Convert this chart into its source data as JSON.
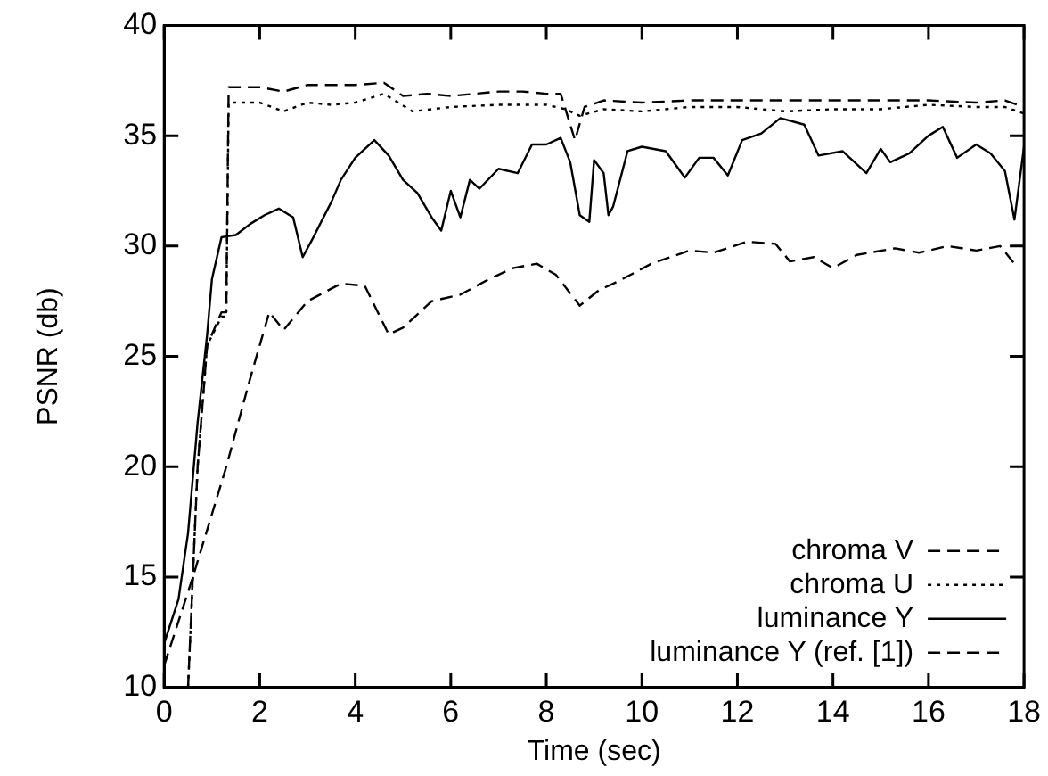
{
  "chart_data": {
    "type": "line",
    "xlabel": "Time (sec)",
    "ylabel": "PSNR (db)",
    "xlim": [
      0,
      18
    ],
    "ylim": [
      10,
      40
    ],
    "xticks": [
      0,
      2,
      4,
      6,
      8,
      10,
      12,
      14,
      16,
      18
    ],
    "yticks": [
      10,
      15,
      20,
      25,
      30,
      35,
      40
    ],
    "grid": false,
    "legend": "bottom right",
    "marker": "none",
    "series": [
      {
        "name": "chroma V",
        "color": "#000000",
        "line_style": "dashed",
        "x": [
          0.5,
          0.7,
          0.9,
          1.2,
          1.3,
          1.35,
          2.0,
          2.5,
          3.0,
          3.5,
          4.0,
          4.6,
          5.0,
          5.5,
          6.0,
          6.5,
          7.0,
          7.5,
          8.0,
          8.3,
          8.6,
          8.8,
          9.2,
          10,
          11,
          12,
          13,
          14,
          15,
          16,
          17,
          17.6,
          18
        ],
        "values": [
          10,
          20,
          25.5,
          27,
          27,
          37.2,
          37.2,
          37.0,
          37.3,
          37.3,
          37.3,
          37.4,
          36.8,
          36.9,
          36.8,
          36.9,
          37.0,
          37.0,
          36.9,
          36.9,
          34.8,
          36.3,
          36.6,
          36.5,
          36.6,
          36.6,
          36.6,
          36.6,
          36.6,
          36.6,
          36.5,
          36.6,
          36.3
        ]
      },
      {
        "name": "chroma U",
        "color": "#000000",
        "line_style": "dotted",
        "x": [
          0.5,
          0.7,
          0.9,
          1.2,
          1.3,
          1.35,
          2.0,
          2.5,
          3.0,
          3.5,
          4.0,
          4.6,
          5.2,
          6.0,
          7.0,
          8.0,
          8.4,
          8.7,
          9.2,
          10,
          11,
          12,
          13,
          14,
          15,
          16,
          17,
          17.6,
          18
        ],
        "values": [
          10,
          20,
          25.5,
          26.8,
          26.8,
          36.5,
          36.5,
          36.1,
          36.5,
          36.4,
          36.5,
          36.9,
          36.1,
          36.3,
          36.4,
          36.4,
          36.2,
          35.9,
          36.2,
          36.1,
          36.3,
          36.3,
          36.1,
          36.2,
          36.2,
          36.4,
          36.3,
          36.3,
          36.0
        ]
      },
      {
        "name": "luminance Y",
        "color": "#000000",
        "line_style": "solid",
        "x": [
          0,
          0.3,
          0.5,
          0.7,
          0.9,
          1.0,
          1.2,
          1.5,
          1.8,
          2.1,
          2.4,
          2.7,
          2.9,
          3.1,
          3.5,
          3.7,
          4.0,
          4.4,
          4.7,
          5.0,
          5.3,
          5.6,
          5.8,
          6.0,
          6.2,
          6.4,
          6.6,
          7.0,
          7.4,
          7.7,
          8.0,
          8.3,
          8.5,
          8.7,
          8.9,
          9.0,
          9.2,
          9.3,
          9.4,
          9.7,
          10,
          10.5,
          10.9,
          11.2,
          11.5,
          11.8,
          12.1,
          12.5,
          12.9,
          13.4,
          13.7,
          14.2,
          14.7,
          15.0,
          15.2,
          15.6,
          16.0,
          16.3,
          16.6,
          17.0,
          17.3,
          17.6,
          17.8,
          18
        ],
        "values": [
          12,
          14,
          17,
          22,
          26,
          28.5,
          30.4,
          30.5,
          31,
          31.4,
          31.7,
          31.3,
          29.5,
          30.3,
          32,
          33,
          34,
          34.8,
          34.1,
          33,
          32.4,
          31.3,
          30.7,
          32.5,
          31.3,
          33,
          32.6,
          33.5,
          33.3,
          34.6,
          34.6,
          34.9,
          33.8,
          31.4,
          31.1,
          33.9,
          33.3,
          31.4,
          31.8,
          34.3,
          34.5,
          34.3,
          33.1,
          34.0,
          34.0,
          33.2,
          34.8,
          35.1,
          35.8,
          35.5,
          34.1,
          34.3,
          33.3,
          34.4,
          33.8,
          34.2,
          35.0,
          35.4,
          34.0,
          34.6,
          34.2,
          33.4,
          31.2,
          34.5
        ]
      },
      {
        "name": "luminance Y (ref. [1])",
        "color": "#000000",
        "line_style": "dashed",
        "x": [
          0,
          0.6,
          1.3,
          1.8,
          2.2,
          2.5,
          3.0,
          3.7,
          4.2,
          4.7,
          5.0,
          5.6,
          6.2,
          6.8,
          7.3,
          7.8,
          8.2,
          8.7,
          9.1,
          9.5,
          10.2,
          11,
          11.5,
          12.2,
          12.8,
          13.1,
          13.6,
          14,
          14.5,
          15.3,
          15.8,
          16.4,
          17,
          17.5,
          17.8
        ],
        "values": [
          11,
          15,
          20,
          24,
          27,
          26.2,
          27.5,
          28.3,
          28.2,
          26.0,
          26.3,
          27.5,
          27.8,
          28.5,
          29.0,
          29.2,
          28.7,
          27.3,
          28,
          28.4,
          29.2,
          29.8,
          29.7,
          30.2,
          30.1,
          29.3,
          29.5,
          29.0,
          29.6,
          29.9,
          29.7,
          30.0,
          29.8,
          30.0,
          29.2
        ]
      }
    ]
  }
}
